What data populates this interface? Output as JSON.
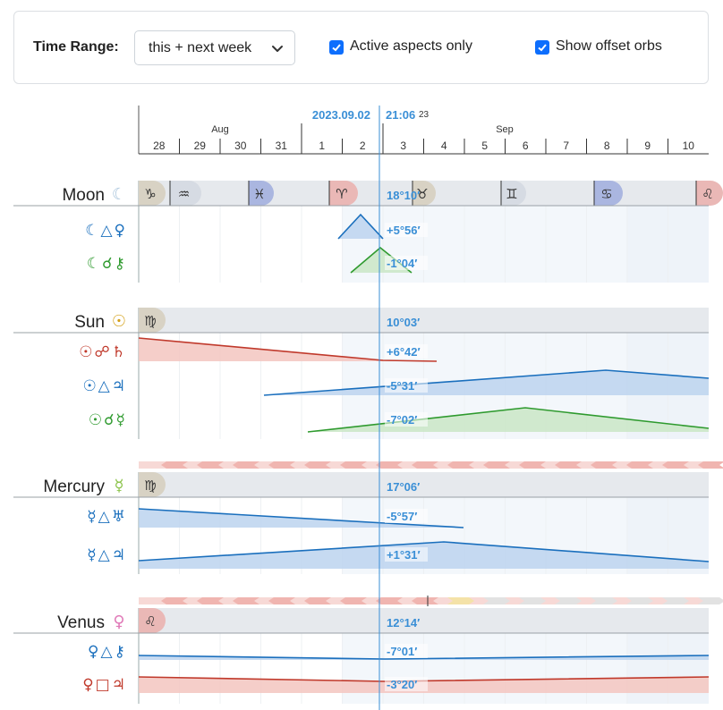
{
  "toolbar": {
    "time_range_label": "Time Range:",
    "time_range_value": "this + next week",
    "active_aspects_label": "Active aspects only",
    "active_aspects_checked": true,
    "offset_orbs_label": "Show offset orbs",
    "offset_orbs_checked": true
  },
  "timeline": {
    "current_date": "2023.09.02",
    "current_time": "21:06",
    "current_time_suffix": "23",
    "months": [
      {
        "label": "Aug",
        "day": 30
      },
      {
        "label": "Sep",
        "day": 36
      }
    ],
    "days": [
      "28",
      "29",
      "30",
      "31",
      "1",
      "2",
      "3",
      "4",
      "5",
      "6",
      "7",
      "8",
      "9",
      "10"
    ]
  },
  "planets": [
    {
      "name": "Moon",
      "glyph": "☾",
      "color": "#a8c4dc",
      "position": "18°10′",
      "signs": [
        {
          "glyph": "♑",
          "bg": "#d8d2c4"
        },
        {
          "glyph": "♒",
          "bg": "#d6dbe3"
        },
        {
          "glyph": "♓",
          "bg": "#aab6e0"
        },
        {
          "glyph": "♈",
          "bg": "#eab8b6"
        },
        {
          "glyph": "♉",
          "bg": "#d8d2c4"
        },
        {
          "glyph": "♊",
          "bg": "#d6dbe3"
        },
        {
          "glyph": "♋",
          "bg": "#aab6e0"
        },
        {
          "glyph": "♌",
          "bg": "#eab8b6"
        }
      ],
      "aspects": [
        {
          "glyphs": "☾△♀",
          "color": "#1a6fbd",
          "orb": "+5°56′"
        },
        {
          "glyphs": "☾☌⚷",
          "color": "#2e9a2e",
          "orb": "-1°04′"
        }
      ]
    },
    {
      "name": "Sun",
      "glyph": "☉",
      "color": "#d4a017",
      "position": "10°03′",
      "signs": [
        {
          "glyph": "♍",
          "bg": "#d8d2c4"
        }
      ],
      "aspects": [
        {
          "glyphs": "☉☍♄",
          "color": "#c0392b",
          "orb": "+6°42′"
        },
        {
          "glyphs": "☉△♃",
          "color": "#1a6fbd",
          "orb": "-5°31′"
        },
        {
          "glyphs": "☉☌☿",
          "color": "#2e9a2e",
          "orb": "-7°02′"
        }
      ]
    },
    {
      "name": "Mercury",
      "glyph": "☿",
      "color": "#8bc34a",
      "position": "17°06′",
      "signs": [
        {
          "glyph": "♍",
          "bg": "#d8d2c4"
        }
      ],
      "aspects": [
        {
          "glyphs": "☿△♅",
          "color": "#1a6fbd",
          "orb": "-5°57′"
        },
        {
          "glyphs": "☿△♃",
          "color": "#1a6fbd",
          "orb": "+1°31′"
        }
      ]
    },
    {
      "name": "Venus",
      "glyph": "♀",
      "color": "#e07ab8",
      "position": "12°14′",
      "signs": [
        {
          "glyph": "♌",
          "bg": "#eab8b6"
        }
      ],
      "aspects": [
        {
          "glyphs": "♀△⚷",
          "color": "#1a6fbd",
          "orb": "-7°01′"
        },
        {
          "glyphs": "♀□♃",
          "color": "#c0392b",
          "orb": "-3°20′"
        }
      ]
    }
  ],
  "colors": {
    "trine": "#1a6fbd",
    "conjunction": "#2e9a2e",
    "opposition_square": "#c0392b",
    "cursor": "#3a8fd6"
  }
}
